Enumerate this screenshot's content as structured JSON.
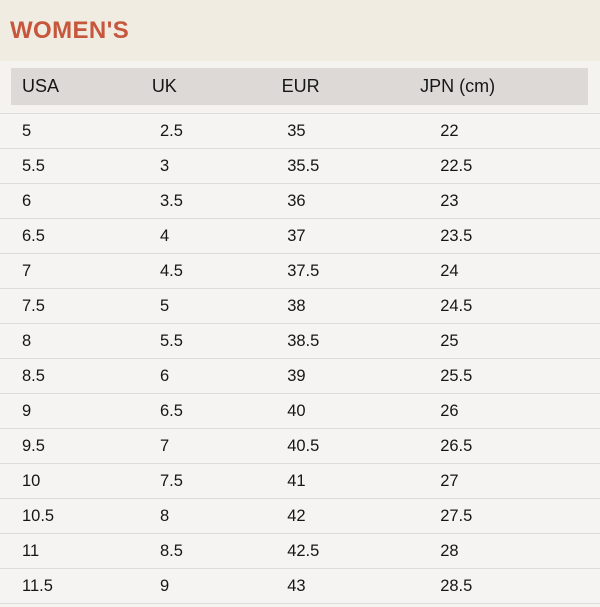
{
  "title": "WOMEN'S",
  "colors": {
    "accent_title": "#c6573c",
    "banner_bg": "#f0ece1",
    "page_bg": "#f4f3f0",
    "header_bg": "#dcd9d6",
    "row_bg": "#f5f4f2",
    "row_border": "#dedcd9",
    "text": "#161616"
  },
  "chart_data": {
    "type": "table",
    "title": "WOMEN'S",
    "columns": [
      "USA",
      "UK",
      "EUR",
      "JPN (cm)"
    ],
    "rows": [
      [
        "5",
        "2.5",
        "35",
        "22"
      ],
      [
        "5.5",
        "3",
        "35.5",
        "22.5"
      ],
      [
        "6",
        "3.5",
        "36",
        "23"
      ],
      [
        "6.5",
        "4",
        "37",
        "23.5"
      ],
      [
        "7",
        "4.5",
        "37.5",
        "24"
      ],
      [
        "7.5",
        "5",
        "38",
        "24.5"
      ],
      [
        "8",
        "5.5",
        "38.5",
        "25"
      ],
      [
        "8.5",
        "6",
        "39",
        "25.5"
      ],
      [
        "9",
        "6.5",
        "40",
        "26"
      ],
      [
        "9.5",
        "7",
        "40.5",
        "26.5"
      ],
      [
        "10",
        "7.5",
        "41",
        "27"
      ],
      [
        "10.5",
        "8",
        "42",
        "27.5"
      ],
      [
        "11",
        "8.5",
        "42.5",
        "28"
      ],
      [
        "11.5",
        "9",
        "43",
        "28.5"
      ]
    ]
  }
}
